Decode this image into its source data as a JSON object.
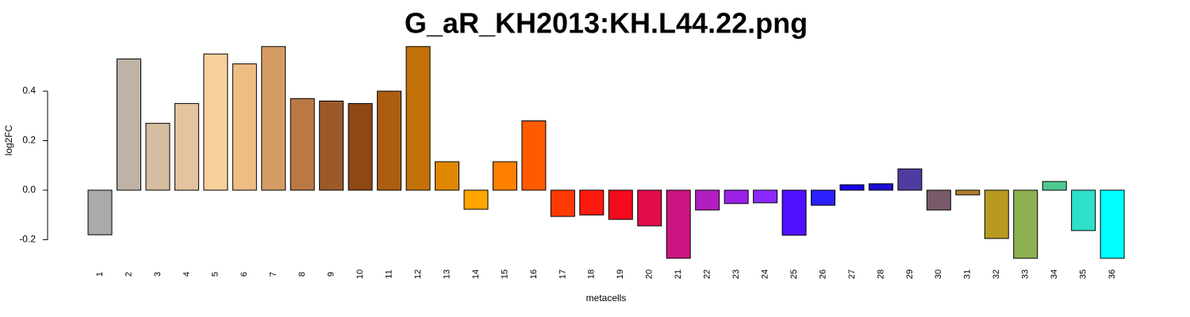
{
  "chart_data": {
    "type": "bar",
    "title": "G_aR_KH2013:KH.L44.22.png",
    "x_label": "metacells",
    "y_label": "log2FC",
    "categories": [
      "1",
      "2",
      "3",
      "4",
      "5",
      "6",
      "7",
      "8",
      "9",
      "10",
      "11",
      "12",
      "13",
      "14",
      "15",
      "16",
      "17",
      "18",
      "19",
      "20",
      "21",
      "22",
      "23",
      "24",
      "25",
      "26",
      "27",
      "28",
      "29",
      "30",
      "31",
      "32",
      "33",
      "34",
      "35",
      "36"
    ],
    "values": [
      -0.18,
      0.53,
      0.27,
      0.35,
      0.55,
      0.51,
      0.58,
      0.37,
      0.36,
      0.35,
      0.4,
      0.58,
      0.115,
      -0.077,
      0.115,
      0.28,
      -0.106,
      -0.1,
      -0.118,
      -0.144,
      -0.275,
      -0.08,
      -0.054,
      -0.051,
      -0.182,
      -0.061,
      0.022,
      0.026,
      0.086,
      -0.08,
      -0.019,
      -0.195,
      -0.275,
      0.035,
      -0.163,
      -0.275
    ],
    "colors": [
      "#aaaaaa",
      "#bfb3a6",
      "#d4bda0",
      "#e3c49e",
      "#f7cf9b",
      "#eebd83",
      "#d59c65",
      "#bb7845",
      "#9c5a2b",
      "#8f4714",
      "#ac5e10",
      "#c3720a",
      "#e08700",
      "#ffa500",
      "#ff8000",
      "#ff5a00",
      "#ff3a00",
      "#ff1a10",
      "#f50a1e",
      "#e00d4a",
      "#cc1480",
      "#b31ec0",
      "#9b20e8",
      "#8a2aff",
      "#5010ff",
      "#2a20ff",
      "#1a00ee",
      "#1e0ed0",
      "#503ca0",
      "#7a5a6a",
      "#b08030",
      "#b89a20",
      "#8db050",
      "#50c890",
      "#2ee0c8",
      "#00ffff"
    ],
    "ylim": [
      -0.29,
      0.6
    ],
    "yticks": [
      -0.2,
      {
        "value": 0,
        "label": "0.0"
      },
      0.2,
      0.4
    ]
  }
}
